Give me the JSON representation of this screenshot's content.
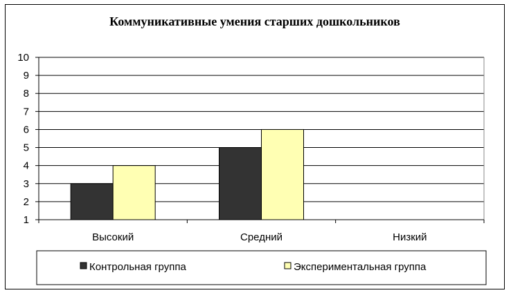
{
  "chart_data": {
    "type": "bar",
    "title": "Коммуникативные умения старших дошкольников",
    "xlabel": "",
    "ylabel": "",
    "categories": [
      "Высокий",
      "Средний",
      "Низкий"
    ],
    "series": [
      {
        "name": "Контрольная группа",
        "color": "#333333",
        "values": [
          3,
          5,
          1
        ]
      },
      {
        "name": "Экспериментальная группа",
        "color": "#ffffb3",
        "values": [
          4,
          6,
          1
        ]
      }
    ],
    "ylim": [
      1,
      10
    ],
    "yticks": [
      1,
      2,
      3,
      4,
      5,
      6,
      7,
      8,
      9,
      10
    ],
    "grid": true,
    "legend_position": "bottom"
  }
}
